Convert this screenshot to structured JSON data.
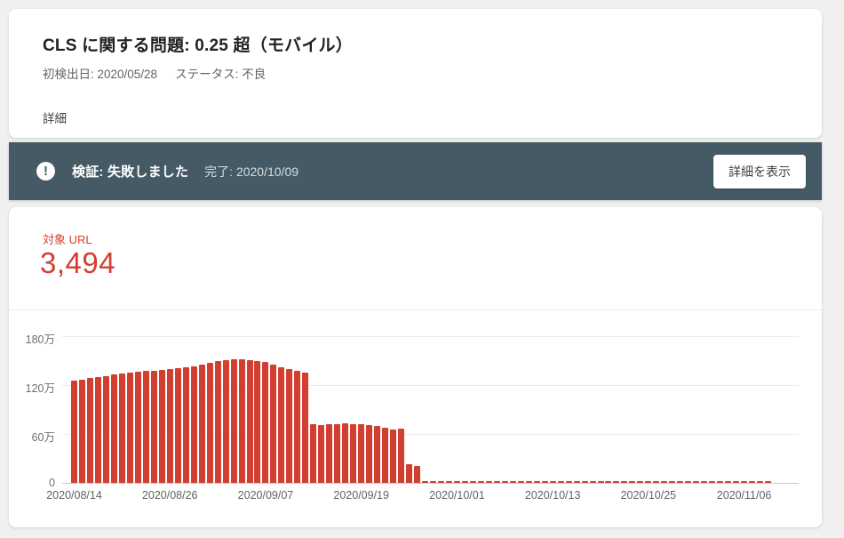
{
  "header_card": {
    "title": "CLS に関する問題: 0.25 超（モバイル）",
    "first_detected": "初検出日: 2020/05/28",
    "status": "ステータス: 不良",
    "details_heading": "詳細"
  },
  "validation_banner": {
    "icon_glyph": "!",
    "status_text": "検証: 失敗しました",
    "completed_text": "完了: 2020/10/09",
    "button_label": "詳細を表示",
    "bg_color": "#455a64"
  },
  "summary": {
    "metric_label": "対象 URL",
    "metric_value": "3,494",
    "accent_color": "#d23f31"
  },
  "chart_data": {
    "type": "bar",
    "title": "",
    "xlabel": "",
    "ylabel": "",
    "unit": "万 (×10,000 URLs)",
    "ylim": [
      0,
      180
    ],
    "bar_color": "#d23f31",
    "grid": true,
    "y_ticks": [
      {
        "label": "180万",
        "value": 180
      },
      {
        "label": "120万",
        "value": 120
      },
      {
        "label": "60万",
        "value": 60
      },
      {
        "label": "0",
        "value": 0
      }
    ],
    "x_tick_indices": [
      0,
      12,
      24,
      36,
      48,
      60,
      72,
      84
    ],
    "dates": [
      "2020/08/14",
      "2020/08/15",
      "2020/08/16",
      "2020/08/17",
      "2020/08/18",
      "2020/08/19",
      "2020/08/20",
      "2020/08/21",
      "2020/08/22",
      "2020/08/23",
      "2020/08/24",
      "2020/08/25",
      "2020/08/26",
      "2020/08/27",
      "2020/08/28",
      "2020/08/29",
      "2020/08/30",
      "2020/08/31",
      "2020/09/01",
      "2020/09/02",
      "2020/09/03",
      "2020/09/04",
      "2020/09/05",
      "2020/09/06",
      "2020/09/07",
      "2020/09/08",
      "2020/09/09",
      "2020/09/10",
      "2020/09/11",
      "2020/09/12",
      "2020/09/13",
      "2020/09/14",
      "2020/09/15",
      "2020/09/16",
      "2020/09/17",
      "2020/09/18",
      "2020/09/19",
      "2020/09/20",
      "2020/09/21",
      "2020/09/22",
      "2020/09/23",
      "2020/09/24",
      "2020/09/25",
      "2020/09/26",
      "2020/09/27",
      "2020/09/28",
      "2020/09/29",
      "2020/09/30",
      "2020/10/01",
      "2020/10/02",
      "2020/10/03",
      "2020/10/04",
      "2020/10/05",
      "2020/10/06",
      "2020/10/07",
      "2020/10/08",
      "2020/10/09",
      "2020/10/10",
      "2020/10/11",
      "2020/10/12",
      "2020/10/13",
      "2020/10/14",
      "2020/10/15",
      "2020/10/16",
      "2020/10/17",
      "2020/10/18",
      "2020/10/19",
      "2020/10/20",
      "2020/10/21",
      "2020/10/22",
      "2020/10/23",
      "2020/10/24",
      "2020/10/25",
      "2020/10/26",
      "2020/10/27",
      "2020/10/28",
      "2020/10/29",
      "2020/10/30",
      "2020/10/31",
      "2020/11/01",
      "2020/11/02",
      "2020/11/03",
      "2020/11/04",
      "2020/11/05",
      "2020/11/06",
      "2020/11/07",
      "2020/11/08",
      "2020/11/09"
    ],
    "values": [
      125,
      127,
      129,
      130,
      131,
      133,
      134,
      135,
      136,
      137,
      138,
      139,
      140,
      141,
      142,
      143,
      145,
      147,
      149,
      151,
      152,
      152,
      151,
      150,
      148,
      145,
      142,
      140,
      137,
      135,
      72,
      71,
      72,
      72,
      73,
      72,
      72,
      71,
      70,
      68,
      65,
      67,
      23,
      21,
      1,
      1,
      1,
      1,
      1,
      1,
      1,
      1,
      1,
      1,
      1,
      1,
      1,
      1,
      1,
      1,
      1,
      1,
      1,
      1,
      1,
      1,
      1,
      1,
      1,
      1,
      1,
      1,
      1,
      1,
      1,
      1,
      1,
      1,
      1,
      1,
      1,
      1,
      1,
      1,
      1,
      1,
      1,
      1
    ]
  }
}
